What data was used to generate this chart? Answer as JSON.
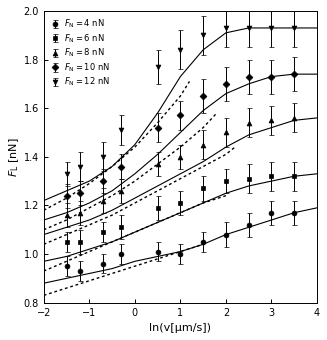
{
  "title": "",
  "xlabel": "ln(v[μm/s])",
  "ylabel": "$F_{\\mathrm{L}}$ [nN]",
  "xlim": [
    -2,
    4
  ],
  "ylim": [
    0.8,
    2.0
  ],
  "yticks": [
    0.8,
    1.0,
    1.2,
    1.4,
    1.6,
    1.8,
    2.0
  ],
  "xticks": [
    -2,
    -1,
    0,
    1,
    2,
    3,
    4
  ],
  "series": [
    {
      "label": "$F_{\\mathrm{N}}= 4$ nN",
      "marker": "o",
      "data_x": [
        -1.5,
        -1.2,
        -0.7,
        -0.3,
        0.5,
        1.0,
        1.5,
        2.0,
        2.5,
        3.0,
        3.5
      ],
      "data_y": [
        0.95,
        0.93,
        0.96,
        1.0,
        1.01,
        1.0,
        1.05,
        1.08,
        1.12,
        1.17,
        1.17
      ],
      "yerr": [
        0.04,
        0.04,
        0.04,
        0.04,
        0.04,
        0.04,
        0.04,
        0.05,
        0.05,
        0.05,
        0.05
      ],
      "solid_x": [
        -2.0,
        -1.5,
        -1.0,
        -0.5,
        0.0,
        0.5,
        1.0,
        1.5,
        2.0,
        2.5,
        3.0,
        3.5,
        4.0
      ],
      "solid_y": [
        0.88,
        0.9,
        0.92,
        0.94,
        0.97,
        0.99,
        1.01,
        1.04,
        1.08,
        1.11,
        1.14,
        1.17,
        1.19
      ],
      "dot_x": [
        -2.0,
        -1.5,
        -1.0,
        -0.5,
        0.0,
        0.5,
        1.0,
        1.5
      ],
      "dot_y": [
        0.83,
        0.86,
        0.89,
        0.92,
        0.95,
        0.98,
        1.01,
        1.04
      ]
    },
    {
      "label": "$F_{\\mathrm{N}}= 6$ nN",
      "marker": "s",
      "data_x": [
        -1.5,
        -1.2,
        -0.7,
        -0.3,
        0.5,
        1.0,
        1.5,
        2.0,
        2.5,
        3.0,
        3.5
      ],
      "data_y": [
        1.05,
        1.05,
        1.09,
        1.11,
        1.19,
        1.21,
        1.27,
        1.3,
        1.31,
        1.32,
        1.32
      ],
      "yerr": [
        0.04,
        0.05,
        0.04,
        0.05,
        0.05,
        0.05,
        0.05,
        0.05,
        0.06,
        0.06,
        0.06
      ],
      "solid_x": [
        -2.0,
        -1.5,
        -1.0,
        -0.5,
        0.0,
        0.5,
        1.0,
        1.5,
        2.0,
        2.5,
        3.0,
        3.5,
        4.0
      ],
      "solid_y": [
        0.97,
        0.99,
        1.02,
        1.05,
        1.09,
        1.13,
        1.17,
        1.21,
        1.25,
        1.28,
        1.3,
        1.32,
        1.33
      ],
      "dot_x": [
        -2.0,
        -1.5,
        -1.0,
        -0.5,
        0.0,
        0.5,
        1.0,
        1.5,
        2.0
      ],
      "dot_y": [
        0.93,
        0.97,
        1.01,
        1.05,
        1.09,
        1.13,
        1.17,
        1.21,
        1.24
      ]
    },
    {
      "label": "$F_{\\mathrm{N}}= 8$ nN",
      "marker": "^",
      "data_x": [
        -1.5,
        -1.2,
        -0.7,
        -0.3,
        0.5,
        1.0,
        1.5,
        2.0,
        2.5,
        3.0,
        3.5
      ],
      "data_y": [
        1.16,
        1.17,
        1.22,
        1.26,
        1.37,
        1.4,
        1.45,
        1.5,
        1.54,
        1.55,
        1.56
      ],
      "yerr": [
        0.05,
        0.05,
        0.05,
        0.05,
        0.05,
        0.05,
        0.06,
        0.06,
        0.06,
        0.06,
        0.06
      ],
      "solid_x": [
        -2.0,
        -1.5,
        -1.0,
        -0.5,
        0.0,
        0.5,
        1.0,
        1.5,
        2.0,
        2.5,
        3.0,
        3.5,
        4.0
      ],
      "solid_y": [
        1.08,
        1.11,
        1.14,
        1.18,
        1.23,
        1.28,
        1.33,
        1.38,
        1.44,
        1.49,
        1.52,
        1.55,
        1.56
      ],
      "dot_x": [
        -2.0,
        -1.5,
        -1.0,
        -0.5,
        0.0,
        0.5,
        1.0,
        1.5,
        2.0,
        2.2
      ],
      "dot_y": [
        1.04,
        1.08,
        1.12,
        1.16,
        1.21,
        1.26,
        1.31,
        1.36,
        1.41,
        1.44
      ]
    },
    {
      "label": "$F_{\\mathrm{N}}= 10$ nN",
      "marker": "D",
      "data_x": [
        -1.5,
        -1.2,
        -0.7,
        -0.3,
        0.5,
        1.0,
        1.5,
        2.0,
        2.5,
        3.0,
        3.5
      ],
      "data_y": [
        1.24,
        1.25,
        1.3,
        1.36,
        1.52,
        1.57,
        1.65,
        1.7,
        1.73,
        1.73,
        1.74
      ],
      "yerr": [
        0.05,
        0.05,
        0.05,
        0.05,
        0.06,
        0.06,
        0.07,
        0.07,
        0.07,
        0.07,
        0.07
      ],
      "solid_x": [
        -2.0,
        -1.5,
        -1.0,
        -0.5,
        0.0,
        0.5,
        1.0,
        1.5,
        2.0,
        2.5,
        3.0,
        3.5,
        4.0
      ],
      "solid_y": [
        1.14,
        1.17,
        1.21,
        1.26,
        1.33,
        1.41,
        1.5,
        1.59,
        1.66,
        1.7,
        1.73,
        1.74,
        1.74
      ],
      "dot_x": [
        -2.0,
        -1.5,
        -1.0,
        -0.5,
        0.0,
        0.5,
        1.0,
        1.5,
        1.8
      ],
      "dot_y": [
        1.1,
        1.14,
        1.19,
        1.24,
        1.3,
        1.37,
        1.44,
        1.52,
        1.58
      ]
    },
    {
      "label": "$F_{\\mathrm{N}}= 12$ nN",
      "marker": "v",
      "data_x": [
        -1.5,
        -1.2,
        -0.7,
        -0.3,
        0.5,
        1.0,
        1.5,
        2.0,
        2.5,
        3.0,
        3.5
      ],
      "data_y": [
        1.33,
        1.36,
        1.4,
        1.51,
        1.77,
        1.84,
        1.9,
        1.93,
        1.93,
        1.93,
        1.93
      ],
      "yerr": [
        0.05,
        0.06,
        0.06,
        0.06,
        0.07,
        0.08,
        0.08,
        0.08,
        0.08,
        0.08,
        0.08
      ],
      "solid_x": [
        -2.0,
        -1.5,
        -1.0,
        -0.5,
        0.0,
        0.5,
        1.0,
        1.5,
        2.0,
        2.5,
        3.0,
        3.5,
        4.0
      ],
      "solid_y": [
        1.22,
        1.26,
        1.3,
        1.36,
        1.45,
        1.58,
        1.73,
        1.84,
        1.91,
        1.93,
        1.93,
        1.93,
        1.93
      ],
      "dot_x": [
        -2.0,
        -1.5,
        -1.0,
        -0.5,
        0.0,
        0.5,
        1.0,
        1.2
      ],
      "dot_y": [
        1.18,
        1.23,
        1.29,
        1.36,
        1.44,
        1.54,
        1.65,
        1.71
      ]
    }
  ]
}
